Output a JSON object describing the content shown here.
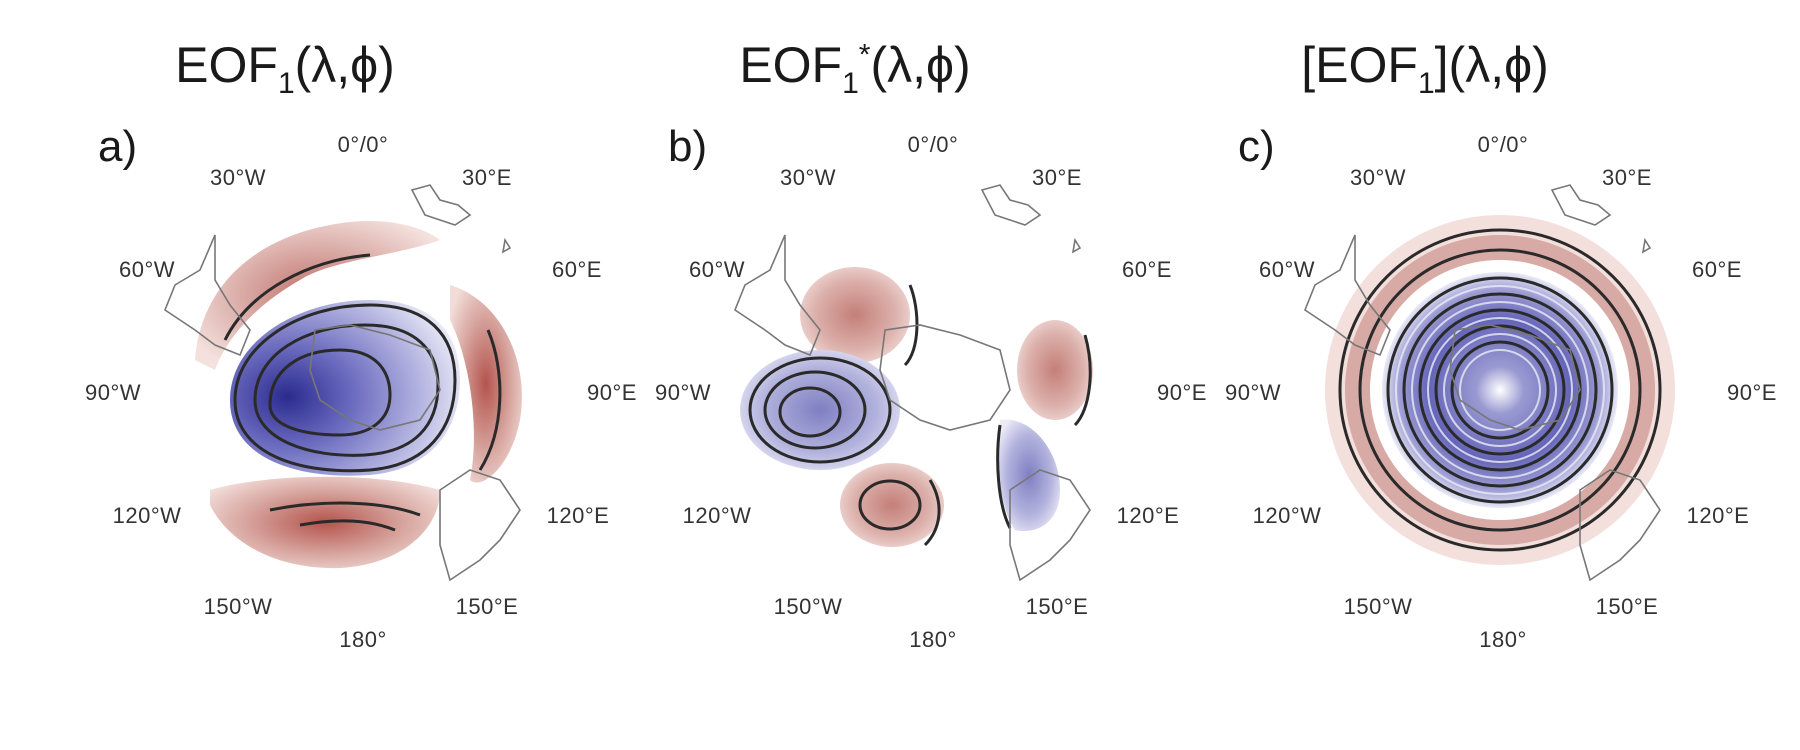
{
  "panels": [
    {
      "id": "a",
      "label": "a)",
      "title_main": "EOF",
      "title_sub": "1",
      "title_sup": "",
      "title_args": "(λ,ϕ)",
      "title_prefix": "",
      "title_mid": ""
    },
    {
      "id": "b",
      "label": "b)",
      "title_main": "EOF",
      "title_sub": "1",
      "title_sup": "*",
      "title_args": "(λ,ϕ)",
      "title_prefix": "",
      "title_mid": ""
    },
    {
      "id": "c",
      "label": "c)",
      "title_main": "EOF",
      "title_sub": "1",
      "title_sup": "",
      "title_args": "(λ,ϕ)",
      "title_prefix": "[",
      "title_mid": "]"
    }
  ],
  "longitude_labels": [
    "0°/0°",
    "30°E",
    "60°E",
    "90°E",
    "120°E",
    "150°E",
    "180°",
    "150°W",
    "120°W",
    "90°W",
    "60°W",
    "30°W"
  ],
  "colors": {
    "positive": "#b5574f",
    "negative": "#3a3a9a",
    "contour": "#2a2a2a",
    "coast": "#777777"
  }
}
